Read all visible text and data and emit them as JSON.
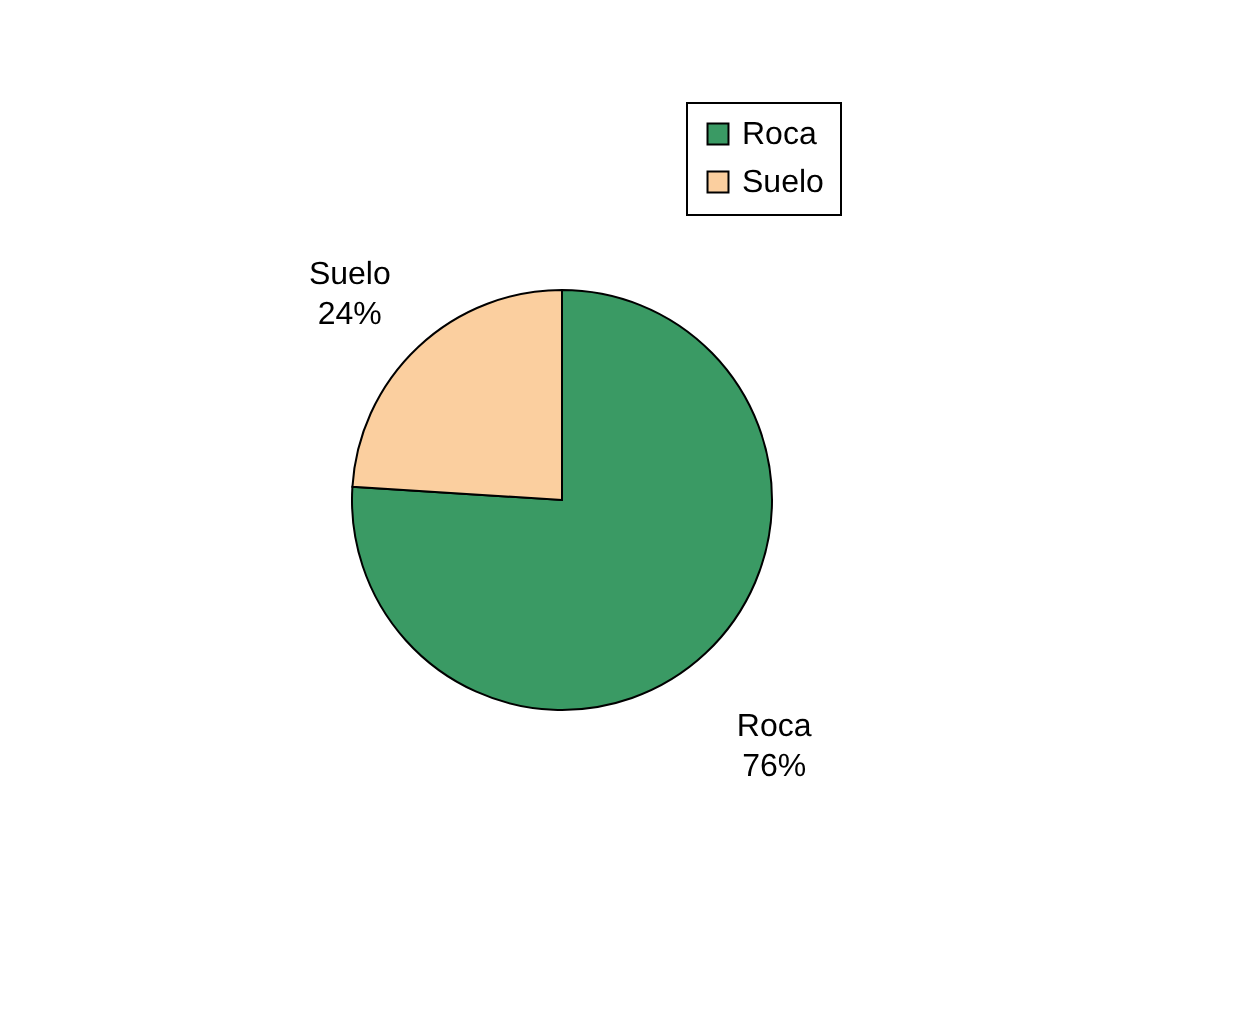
{
  "chart_data": {
    "type": "pie",
    "categories": [
      "Roca",
      "Suelo"
    ],
    "values": [
      76,
      24
    ],
    "colors": [
      "#3a9a64",
      "#fbcf9f"
    ],
    "value_labels": [
      "76%",
      "24%"
    ],
    "legend": "top right"
  }
}
